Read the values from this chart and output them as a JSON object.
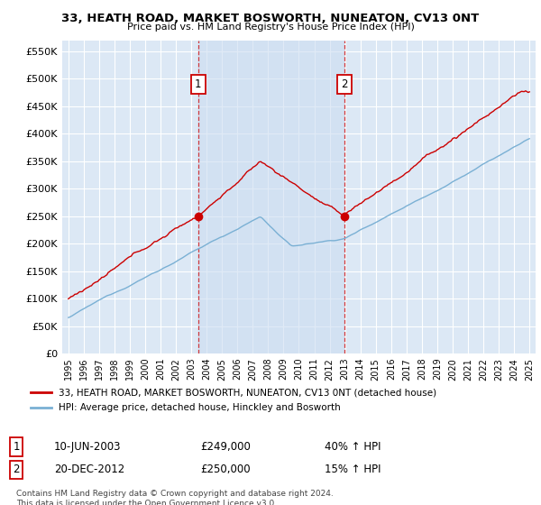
{
  "title": "33, HEATH ROAD, MARKET BOSWORTH, NUNEATON, CV13 0NT",
  "subtitle": "Price paid vs. HM Land Registry's House Price Index (HPI)",
  "ylabel_ticks": [
    "£0",
    "£50K",
    "£100K",
    "£150K",
    "£200K",
    "£250K",
    "£300K",
    "£350K",
    "£400K",
    "£450K",
    "£500K",
    "£550K"
  ],
  "ytick_values": [
    0,
    50000,
    100000,
    150000,
    200000,
    250000,
    300000,
    350000,
    400000,
    450000,
    500000,
    550000
  ],
  "ylim": [
    0,
    570000
  ],
  "sale1_year": 2003.44,
  "sale1_price": 249000,
  "sale2_year": 2012.97,
  "sale2_price": 250000,
  "legend_line1": "33, HEATH ROAD, MARKET BOSWORTH, NUNEATON, CV13 0NT (detached house)",
  "legend_line2": "HPI: Average price, detached house, Hinckley and Bosworth",
  "annotation1": [
    "1",
    "10-JUN-2003",
    "£249,000",
    "40% ↑ HPI"
  ],
  "annotation2": [
    "2",
    "20-DEC-2012",
    "£250,000",
    "15% ↑ HPI"
  ],
  "footnote1": "Contains HM Land Registry data © Crown copyright and database right 2024.",
  "footnote2": "This data is licensed under the Open Government Licence v3.0.",
  "red_color": "#cc0000",
  "blue_color": "#7ab0d4",
  "shade_color": "#dce8f5",
  "bg_color": "#dce8f5",
  "grid_color": "#ffffff"
}
